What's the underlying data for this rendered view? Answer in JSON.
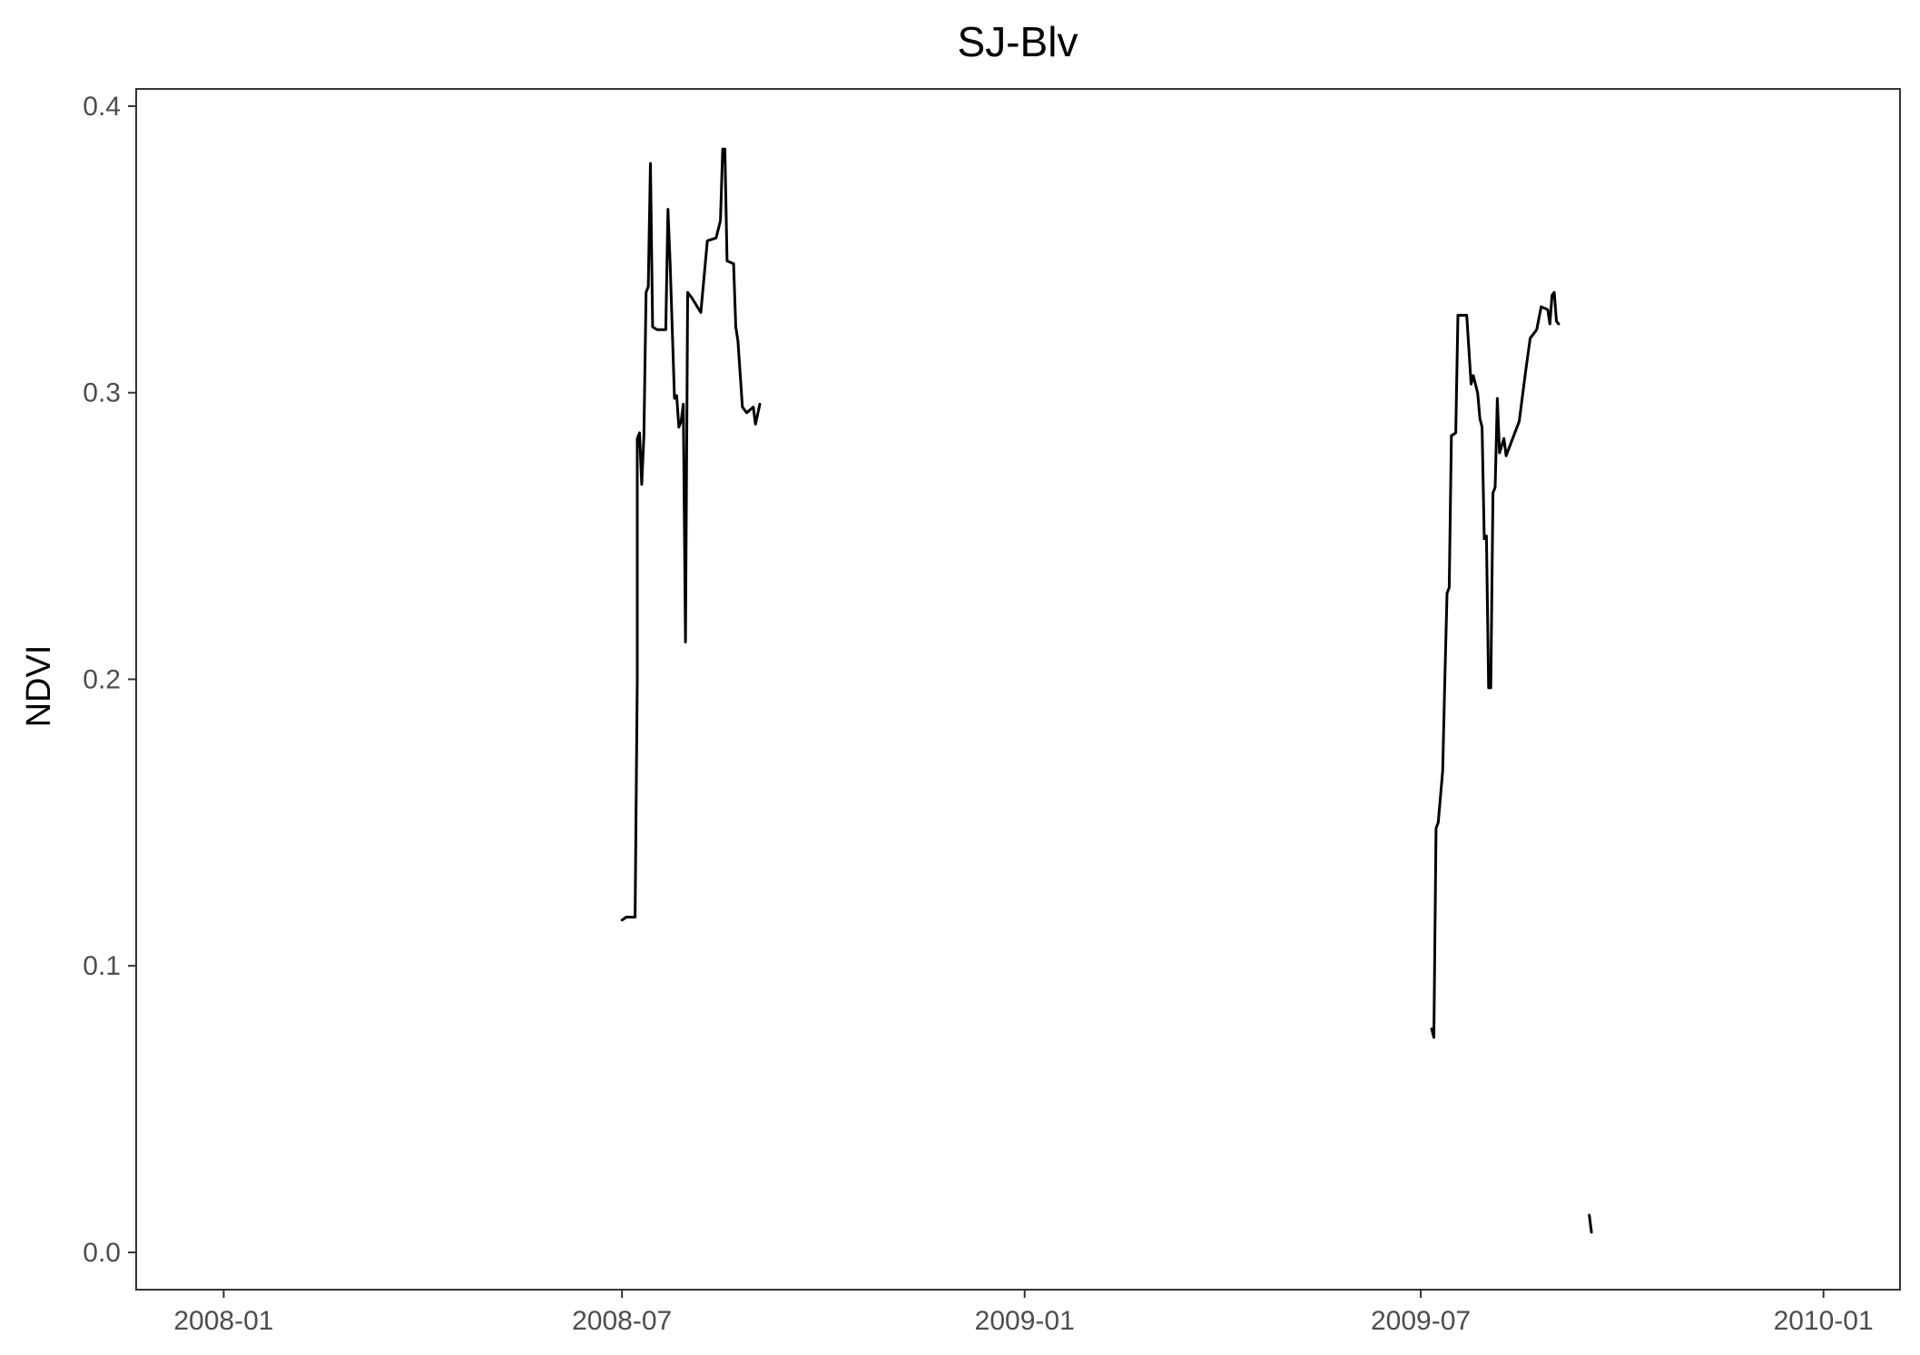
{
  "chart_data": {
    "type": "line",
    "title": "SJ-Blv",
    "xlabel": "",
    "ylabel": "NDVI",
    "xlim": [
      "2007-11-22",
      "2010-02-05"
    ],
    "ylim": [
      -0.013,
      0.406
    ],
    "x_ticks": [
      "2008-01",
      "2008-07",
      "2009-01",
      "2009-07",
      "2010-01"
    ],
    "y_ticks": [
      "0.0",
      "0.1",
      "0.2",
      "0.3",
      "0.4"
    ],
    "grid": false,
    "colors": {
      "line": "#000000",
      "axis": "#333333",
      "tick_text": "#4d4d4d"
    },
    "series": [
      {
        "segments": [
          [
            [
              "2008-07-01",
              0.116
            ],
            [
              "2008-07-03",
              0.117
            ],
            [
              "2008-07-07",
              0.117
            ],
            [
              "2008-07-08",
              0.2
            ],
            [
              "2008-07-08",
              0.284
            ],
            [
              "2008-07-09",
              0.286
            ],
            [
              "2008-07-10",
              0.268
            ],
            [
              "2008-07-11",
              0.285
            ],
            [
              "2008-07-12",
              0.335
            ],
            [
              "2008-07-13",
              0.337
            ],
            [
              "2008-07-14",
              0.38
            ],
            [
              "2008-07-15",
              0.323
            ],
            [
              "2008-07-17",
              0.322
            ],
            [
              "2008-07-21",
              0.322
            ],
            [
              "2008-07-22",
              0.364
            ],
            [
              "2008-07-23",
              0.345
            ],
            [
              "2008-07-25",
              0.298
            ],
            [
              "2008-07-26",
              0.299
            ],
            [
              "2008-07-27",
              0.288
            ],
            [
              "2008-07-28",
              0.29
            ],
            [
              "2008-07-29",
              0.296
            ],
            [
              "2008-07-30",
              0.213
            ],
            [
              "2008-07-31",
              0.335
            ],
            [
              "2008-08-02",
              0.333
            ],
            [
              "2008-08-06",
              0.328
            ],
            [
              "2008-08-09",
              0.353
            ],
            [
              "2008-08-13",
              0.354
            ],
            [
              "2008-08-15",
              0.36
            ],
            [
              "2008-08-16",
              0.385
            ],
            [
              "2008-08-17",
              0.385
            ],
            [
              "2008-08-18",
              0.346
            ],
            [
              "2008-08-21",
              0.345
            ],
            [
              "2008-08-22",
              0.323
            ],
            [
              "2008-08-23",
              0.318
            ],
            [
              "2008-08-25",
              0.295
            ],
            [
              "2008-08-27",
              0.293
            ],
            [
              "2008-08-30",
              0.295
            ],
            [
              "2008-08-31",
              0.289
            ],
            [
              "2008-09-02",
              0.296
            ]
          ],
          [
            [
              "2009-07-06",
              0.078
            ],
            [
              "2009-07-07",
              0.075
            ],
            [
              "2009-07-08",
              0.148
            ],
            [
              "2009-07-09",
              0.15
            ],
            [
              "2009-07-11",
              0.168
            ],
            [
              "2009-07-12",
              0.2
            ],
            [
              "2009-07-13",
              0.23
            ],
            [
              "2009-07-14",
              0.232
            ],
            [
              "2009-07-15",
              0.285
            ],
            [
              "2009-07-17",
              0.286
            ],
            [
              "2009-07-18",
              0.327
            ],
            [
              "2009-07-22",
              0.327
            ],
            [
              "2009-07-24",
              0.303
            ],
            [
              "2009-07-25",
              0.306
            ],
            [
              "2009-07-27",
              0.3
            ],
            [
              "2009-07-28",
              0.291
            ],
            [
              "2009-07-29",
              0.288
            ],
            [
              "2009-07-30",
              0.249
            ],
            [
              "2009-07-31",
              0.25
            ],
            [
              "2009-08-01",
              0.197
            ],
            [
              "2009-08-02",
              0.197
            ],
            [
              "2009-08-03",
              0.265
            ],
            [
              "2009-08-04",
              0.267
            ],
            [
              "2009-08-05",
              0.298
            ],
            [
              "2009-08-06",
              0.279
            ],
            [
              "2009-08-08",
              0.284
            ],
            [
              "2009-08-09",
              0.278
            ],
            [
              "2009-08-12",
              0.284
            ],
            [
              "2009-08-15",
              0.29
            ],
            [
              "2009-08-18",
              0.308
            ],
            [
              "2009-08-20",
              0.319
            ],
            [
              "2009-08-23",
              0.322
            ],
            [
              "2009-08-25",
              0.33
            ],
            [
              "2009-08-28",
              0.329
            ],
            [
              "2009-08-29",
              0.324
            ],
            [
              "2009-08-30",
              0.334
            ],
            [
              "2009-08-31",
              0.335
            ],
            [
              "2009-09-01",
              0.325
            ],
            [
              "2009-09-02",
              0.324
            ]
          ],
          [
            [
              "2009-09-16",
              0.013
            ],
            [
              "2009-09-17",
              0.007
            ]
          ]
        ]
      }
    ]
  }
}
